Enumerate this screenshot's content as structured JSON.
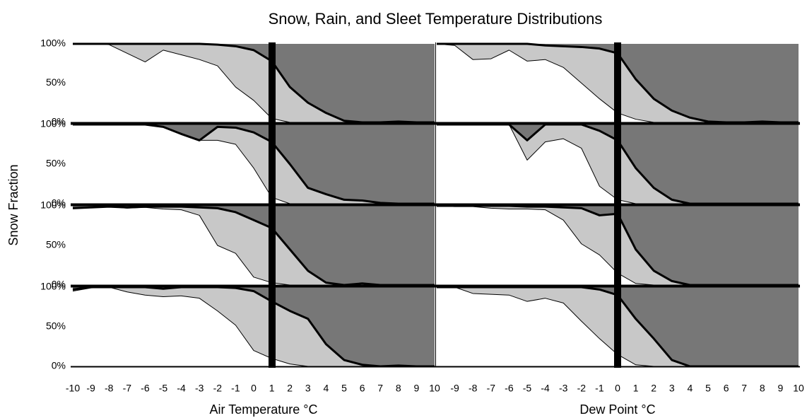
{
  "title": "Snow, Rain, and Sleet Temperature Distributions",
  "ylabel": "Snow Fraction",
  "chart_data": [
    {
      "type": "area",
      "x": [
        -10,
        -9,
        -8,
        -7,
        -6,
        -5,
        -4,
        -3,
        -2,
        -1,
        0,
        1,
        2,
        3,
        4,
        5,
        6,
        7,
        8,
        9,
        10
      ],
      "xlim": [
        -10,
        10
      ],
      "ylim": [
        0,
        100
      ],
      "yticks": [
        {
          "value": 0,
          "label": "0%"
        },
        {
          "value": 50,
          "label": "50%"
        },
        {
          "value": 100,
          "label": "100%"
        }
      ],
      "series": [
        {
          "color": "#ffffff",
          "values": [
            100,
            100,
            99,
            88,
            77,
            92,
            86,
            80,
            72,
            45,
            28,
            5,
            0,
            0,
            0,
            0,
            0,
            0,
            0,
            0,
            0
          ]
        },
        {
          "color": "#c8c8c8",
          "values": [
            0,
            0,
            1,
            12,
            23,
            8,
            14,
            20,
            27,
            52,
            64,
            73,
            45,
            25,
            12,
            2,
            0,
            0,
            1,
            0,
            0
          ]
        },
        {
          "color": "#777777",
          "values": [
            0,
            0,
            0,
            0,
            0,
            0,
            0,
            0,
            1,
            3,
            8,
            22,
            55,
            75,
            88,
            98,
            100,
            100,
            99,
            100,
            100
          ]
        }
      ]
    },
    {
      "type": "area",
      "x": [
        -10,
        -9,
        -8,
        -7,
        -6,
        -5,
        -4,
        -3,
        -2,
        -1,
        0,
        1,
        2,
        3,
        4,
        5,
        6,
        7,
        8,
        9,
        10
      ],
      "xlim": [
        -10,
        10
      ],
      "ylim": [
        0,
        100
      ],
      "series": [
        {
          "color": "#ffffff",
          "values": [
            100,
            98,
            80,
            81,
            92,
            78,
            80,
            70,
            50,
            30,
            12,
            4,
            0,
            0,
            0,
            0,
            0,
            0,
            0,
            0,
            0
          ]
        },
        {
          "color": "#c8c8c8",
          "values": [
            0,
            2,
            20,
            19,
            8,
            22,
            18,
            27,
            46,
            64,
            76,
            51,
            30,
            15,
            6,
            1,
            0,
            0,
            1,
            0,
            0
          ]
        },
        {
          "color": "#777777",
          "values": [
            0,
            0,
            0,
            0,
            0,
            0,
            2,
            3,
            4,
            6,
            12,
            45,
            70,
            85,
            94,
            99,
            100,
            100,
            99,
            100,
            100
          ]
        }
      ]
    },
    {
      "type": "area",
      "x": [
        -10,
        -9,
        -8,
        -7,
        -6,
        -5,
        -4,
        -3,
        -2,
        -1,
        0,
        1,
        2,
        3,
        4,
        5,
        6,
        7,
        8,
        9,
        10
      ],
      "xlim": [
        -10,
        10
      ],
      "ylim": [
        0,
        100
      ],
      "yticks": [
        {
          "value": 0,
          "label": "0%"
        },
        {
          "value": 50,
          "label": "50%"
        },
        {
          "value": 100,
          "label": "100%"
        }
      ],
      "series": [
        {
          "color": "#ffffff",
          "values": [
            100,
            100,
            100,
            100,
            100,
            97,
            88,
            80,
            80,
            75,
            45,
            8,
            0,
            0,
            0,
            0,
            0,
            0,
            0,
            0,
            0
          ]
        },
        {
          "color": "#c8c8c8",
          "values": [
            0,
            0,
            0,
            0,
            0,
            0,
            0,
            0,
            17,
            21,
            45,
            70,
            50,
            20,
            12,
            5,
            4,
            1,
            0,
            0,
            0
          ]
        },
        {
          "color": "#777777",
          "values": [
            0,
            0,
            0,
            0,
            0,
            3,
            12,
            20,
            3,
            4,
            10,
            22,
            50,
            80,
            88,
            95,
            96,
            99,
            100,
            100,
            100
          ]
        }
      ]
    },
    {
      "type": "area",
      "x": [
        -10,
        -9,
        -8,
        -7,
        -6,
        -5,
        -4,
        -3,
        -2,
        -1,
        0,
        1,
        2,
        3,
        4,
        5,
        6,
        7,
        8,
        9,
        10
      ],
      "xlim": [
        -10,
        10
      ],
      "ylim": [
        0,
        100
      ],
      "series": [
        {
          "color": "#ffffff",
          "values": [
            100,
            100,
            100,
            100,
            100,
            55,
            78,
            82,
            70,
            22,
            5,
            0,
            0,
            0,
            0,
            0,
            0,
            0,
            0,
            0,
            0
          ]
        },
        {
          "color": "#c8c8c8",
          "values": [
            0,
            0,
            0,
            0,
            0,
            25,
            22,
            18,
            30,
            70,
            75,
            45,
            20,
            5,
            0,
            0,
            0,
            0,
            0,
            0,
            0
          ]
        },
        {
          "color": "#777777",
          "values": [
            0,
            0,
            0,
            0,
            0,
            20,
            0,
            0,
            0,
            8,
            20,
            55,
            80,
            95,
            100,
            100,
            100,
            100,
            100,
            100,
            100
          ]
        }
      ]
    },
    {
      "type": "area",
      "x": [
        -10,
        -9,
        -8,
        -7,
        -6,
        -5,
        -4,
        -3,
        -2,
        -1,
        0,
        1,
        2,
        3,
        4,
        5,
        6,
        7,
        8,
        9,
        10
      ],
      "xlim": [
        -10,
        10
      ],
      "ylim": [
        0,
        100
      ],
      "yticks": [
        {
          "value": 0,
          "label": "0%"
        },
        {
          "value": 50,
          "label": "50%"
        },
        {
          "value": 100,
          "label": "100%"
        }
      ],
      "series": [
        {
          "color": "#ffffff",
          "values": [
            97,
            98,
            99,
            97,
            98,
            96,
            95,
            88,
            50,
            40,
            10,
            3,
            0,
            0,
            0,
            0,
            0,
            0,
            0,
            0,
            0
          ]
        },
        {
          "color": "#c8c8c8",
          "values": [
            0,
            0,
            0,
            1,
            1,
            3,
            4,
            10,
            47,
            52,
            72,
            69,
            45,
            18,
            3,
            0,
            2,
            0,
            0,
            0,
            0
          ]
        },
        {
          "color": "#777777",
          "values": [
            3,
            2,
            1,
            2,
            1,
            1,
            1,
            2,
            3,
            8,
            18,
            28,
            55,
            82,
            97,
            100,
            98,
            100,
            100,
            100,
            100
          ]
        }
      ]
    },
    {
      "type": "area",
      "x": [
        -10,
        -9,
        -8,
        -7,
        -6,
        -5,
        -4,
        -3,
        -2,
        -1,
        0,
        1,
        2,
        3,
        4,
        5,
        6,
        7,
        8,
        9,
        10
      ],
      "xlim": [
        -10,
        10
      ],
      "ylim": [
        0,
        100
      ],
      "series": [
        {
          "color": "#ffffff",
          "values": [
            100,
            99,
            99,
            97,
            96,
            96,
            95,
            82,
            52,
            38,
            15,
            2,
            0,
            0,
            0,
            0,
            0,
            0,
            0,
            0,
            0
          ]
        },
        {
          "color": "#c8c8c8",
          "values": [
            0,
            1,
            1,
            3,
            4,
            3,
            4,
            16,
            45,
            50,
            75,
            43,
            18,
            5,
            0,
            0,
            0,
            0,
            0,
            0,
            0
          ]
        },
        {
          "color": "#777777",
          "values": [
            0,
            0,
            0,
            0,
            0,
            1,
            1,
            2,
            3,
            12,
            10,
            55,
            82,
            95,
            100,
            100,
            100,
            100,
            100,
            100,
            100
          ]
        }
      ]
    },
    {
      "type": "area",
      "x": [
        -10,
        -9,
        -8,
        -7,
        -6,
        -5,
        -4,
        -3,
        -2,
        -1,
        0,
        1,
        2,
        3,
        4,
        5,
        6,
        7,
        8,
        9,
        10
      ],
      "xlim": [
        -10,
        10
      ],
      "ylim": [
        0,
        100
      ],
      "yticks": [
        {
          "value": 0,
          "label": "0%"
        },
        {
          "value": 50,
          "label": "50%"
        },
        {
          "value": 100,
          "label": "100%"
        }
      ],
      "xticks": [
        -10,
        -9,
        -8,
        -7,
        -6,
        -5,
        -4,
        -3,
        -2,
        -1,
        0,
        1,
        2,
        3,
        4,
        5,
        6,
        7,
        8,
        9,
        10
      ],
      "xlabel": "Air Temperature °C",
      "series": [
        {
          "color": "#ffffff",
          "values": [
            95,
            99,
            100,
            94,
            90,
            88,
            89,
            86,
            70,
            52,
            20,
            10,
            3,
            0,
            0,
            0,
            0,
            0,
            0,
            0,
            0
          ]
        },
        {
          "color": "#c8c8c8",
          "values": [
            2,
            1,
            0,
            6,
            10,
            10,
            11,
            14,
            30,
            47,
            75,
            72,
            67,
            60,
            28,
            8,
            2,
            0,
            1,
            0,
            0
          ]
        },
        {
          "color": "#777777",
          "values": [
            3,
            0,
            0,
            0,
            0,
            2,
            0,
            0,
            0,
            1,
            5,
            18,
            30,
            40,
            72,
            92,
            98,
            100,
            99,
            100,
            100
          ]
        }
      ]
    },
    {
      "type": "area",
      "x": [
        -10,
        -9,
        -8,
        -7,
        -6,
        -5,
        -4,
        -3,
        -2,
        -1,
        0,
        1,
        2,
        3,
        4,
        5,
        6,
        7,
        8,
        9,
        10
      ],
      "xlim": [
        -10,
        10
      ],
      "ylim": [
        0,
        100
      ],
      "xticks": [
        -9,
        -8,
        -7,
        -6,
        -5,
        -4,
        -3,
        -2,
        -1,
        0,
        1,
        2,
        3,
        4,
        5,
        6,
        7,
        8,
        9,
        10
      ],
      "xlabel": "Dew Point °C",
      "series": [
        {
          "color": "#ffffff",
          "values": [
            100,
            100,
            92,
            91,
            90,
            82,
            86,
            80,
            57,
            35,
            15,
            2,
            0,
            0,
            0,
            0,
            0,
            0,
            0,
            0,
            0
          ]
        },
        {
          "color": "#c8c8c8",
          "values": [
            0,
            0,
            8,
            9,
            10,
            18,
            14,
            20,
            43,
            62,
            75,
            58,
            35,
            8,
            0,
            0,
            0,
            0,
            0,
            0,
            0
          ]
        },
        {
          "color": "#777777",
          "values": [
            0,
            0,
            0,
            0,
            0,
            0,
            0,
            0,
            0,
            3,
            10,
            40,
            65,
            92,
            100,
            100,
            100,
            100,
            100,
            100,
            100
          ]
        }
      ]
    }
  ]
}
